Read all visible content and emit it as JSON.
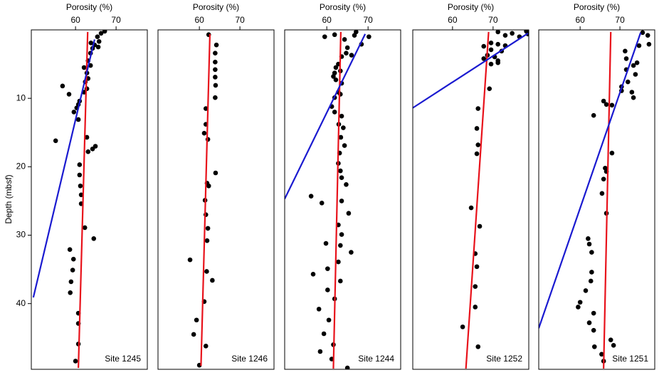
{
  "chart_data": [
    {
      "type": "scatter",
      "x_label": "Porosity (%)",
      "y_label": "Depth (mbsf)",
      "annotation": "Site 1245",
      "xlim": [
        49.1,
        77.7
      ],
      "xticks": [
        60,
        70
      ],
      "ylim": [
        0,
        49.6
      ],
      "yticks": [
        10,
        20,
        30,
        40
      ],
      "series": [
        {
          "type": "scatter",
          "color": "#000000",
          "x": [
            67.2,
            66.3,
            65.4,
            65.8,
            63.8,
            64.7,
            64.2,
            65.6,
            63.7,
            63.1,
            63.7,
            62.1,
            62.8,
            63.1,
            62.4,
            62.8,
            62.1,
            56.8,
            58.4,
            61.0,
            60.7,
            60.3,
            59.6,
            60.7,
            62.8,
            55.1,
            64.9,
            64.2,
            63.1,
            61.0,
            61.0,
            61.2,
            61.4,
            61.4,
            62.3,
            64.5,
            58.6,
            59.5,
            59.3,
            58.9,
            58.7,
            60.7,
            60.7,
            60.7,
            60.0
          ],
          "values": [
            0.2,
            0.5,
            1.0,
            1.7,
            1.9,
            2.2,
            2.7,
            2.5,
            3.4,
            4.5,
            5.2,
            5.5,
            6.3,
            7.1,
            7.6,
            8.6,
            9.1,
            8.2,
            9.4,
            10.4,
            10.9,
            11.4,
            12.0,
            13.1,
            15.7,
            16.2,
            17.0,
            17.4,
            17.8,
            19.7,
            21.2,
            22.8,
            24.1,
            25.4,
            28.9,
            30.5,
            32.1,
            33.5,
            35.1,
            36.8,
            38.4,
            41.4,
            42.9,
            45.9,
            48.4
          ]
        },
        {
          "type": "line",
          "color": "#e8121b",
          "x": [
            63.0,
            60.7
          ],
          "values": [
            0.3,
            49.4
          ]
        },
        {
          "type": "line",
          "color": "#1a1ad0",
          "x": [
            64.7,
            49.6
          ],
          "values": [
            1.4,
            39.1
          ]
        }
      ]
    },
    {
      "type": "scatter",
      "x_label": "Porosity (%)",
      "annotation": "Site 1246",
      "xlim": [
        49.8,
        78.4
      ],
      "xticks": [
        60,
        70
      ],
      "ylim": [
        0,
        49.6
      ],
      "series": [
        {
          "type": "scatter",
          "color": "#000000",
          "x": [
            62.3,
            64.2,
            63.9,
            63.9,
            63.9,
            63.9,
            64.0,
            63.9,
            61.6,
            61.6,
            61.2,
            62.1,
            64.0,
            61.9,
            62.3,
            61.4,
            61.6,
            62.1,
            61.9,
            57.7,
            61.8,
            63.2,
            61.2,
            59.3,
            58.6,
            61.6,
            60.0
          ],
          "values": [
            0.7,
            2.2,
            3.4,
            4.7,
            5.8,
            6.9,
            8.1,
            9.9,
            11.5,
            13.8,
            15.1,
            16.0,
            20.9,
            22.4,
            22.8,
            24.9,
            27.0,
            29.0,
            30.8,
            33.6,
            35.3,
            36.6,
            39.7,
            42.4,
            44.5,
            46.2,
            49.0
          ]
        },
        {
          "type": "line",
          "color": "#e8121b",
          "x": [
            62.6,
            60.4
          ],
          "values": [
            0.6,
            49.1
          ]
        }
      ]
    },
    {
      "type": "scatter",
      "x_label": "Porosity (%)",
      "annotation": "Site 1244",
      "xlim": [
        49.8,
        77.9
      ],
      "xticks": [
        60,
        70
      ],
      "ylim": [
        0,
        49.6
      ],
      "series": [
        {
          "type": "scatter",
          "color": "#000000",
          "x": [
            59.5,
            61.9,
            64.3,
            66.7,
            67.1,
            70.2,
            65.0,
            64.7,
            66.0,
            68.4,
            63.6,
            62.8,
            62.2,
            63.3,
            61.9,
            61.6,
            62.2,
            63.6,
            62.8,
            63.3,
            61.9,
            61.2,
            61.9,
            63.6,
            62.9,
            64.0,
            63.4,
            64.3,
            63.1,
            62.8,
            63.3,
            63.6,
            64.7,
            56.2,
            58.8,
            63.6,
            65.3,
            62.8,
            63.6,
            63.3,
            59.8,
            65.9,
            62.8,
            56.7,
            60.2,
            63.3,
            60.2,
            61.9,
            58.1,
            60.5,
            59.3,
            61.6,
            58.4,
            61.2,
            65.0
          ],
          "values": [
            1.0,
            0.7,
            1.4,
            0.8,
            0.3,
            1.0,
            2.6,
            3.4,
            3.7,
            2.1,
            3.9,
            5.0,
            5.5,
            6.0,
            6.3,
            6.8,
            7.3,
            7.8,
            9.1,
            9.4,
            9.9,
            11.2,
            12.0,
            12.6,
            13.8,
            14.3,
            15.7,
            16.9,
            18.0,
            19.5,
            20.6,
            21.6,
            22.6,
            24.3,
            25.3,
            25.0,
            26.8,
            28.5,
            29.9,
            31.5,
            31.2,
            32.5,
            33.9,
            35.7,
            34.9,
            36.7,
            38.0,
            39.3,
            40.8,
            42.4,
            44.4,
            46.0,
            47.0,
            48.1,
            49.4
          ]
        },
        {
          "type": "line",
          "color": "#e8121b",
          "x": [
            63.4,
            61.6
          ],
          "values": [
            0.3,
            49.5
          ]
        },
        {
          "type": "line",
          "color": "#1a1ad0",
          "x": [
            69.3,
            49.8
          ],
          "values": [
            0.6,
            24.7
          ]
        }
      ]
    },
    {
      "type": "scatter",
      "x_label": "Porosity (%)",
      "annotation": "Site 1252",
      "xlim": [
        50.2,
        78.8
      ],
      "xticks": [
        60,
        70
      ],
      "ylim": [
        0,
        49.6
      ],
      "series": [
        {
          "type": "scatter",
          "color": "#000000",
          "x": [
            71.2,
            74.7,
            78.2,
            78.6,
            73.0,
            76.5,
            69.5,
            71.2,
            73.0,
            67.7,
            69.5,
            72.1,
            68.6,
            70.4,
            71.2,
            69.5,
            71.2,
            67.7,
            69.1,
            66.3,
            66.0,
            66.3,
            66.0,
            64.6,
            66.7,
            65.6,
            66.0,
            65.6,
            65.6,
            62.5,
            66.3
          ],
          "values": [
            0.3,
            0.5,
            0.2,
            0.6,
            0.8,
            1.0,
            1.9,
            2.1,
            2.3,
            2.4,
            2.9,
            3.1,
            3.7,
            3.95,
            4.5,
            5.0,
            4.8,
            4.2,
            8.6,
            11.5,
            14.4,
            16.8,
            18.1,
            26.0,
            28.7,
            32.7,
            34.6,
            37.5,
            40.5,
            43.4,
            46.3
          ]
        },
        {
          "type": "line",
          "color": "#e8121b",
          "x": [
            68.9,
            63.3
          ],
          "values": [
            0.3,
            49.5
          ]
        },
        {
          "type": "line",
          "color": "#1a1ad0",
          "x": [
            78.6,
            50.2
          ],
          "values": [
            0.5,
            11.4
          ]
        }
      ]
    },
    {
      "type": "scatter",
      "x_label": "Porosity (%)",
      "annotation": "Site 1251",
      "xlim": [
        49.6,
        78.75
      ],
      "xticks": [
        60,
        70
      ],
      "ylim": [
        0,
        49.6
      ],
      "series": [
        {
          "type": "scatter",
          "color": "#000000",
          "x": [
            75.7,
            77.0,
            77.3,
            74.8,
            71.3,
            71.6,
            74.3,
            73.4,
            71.6,
            73.9,
            72.0,
            70.4,
            70.4,
            73.0,
            73.4,
            65.9,
            66.6,
            68.0,
            63.4,
            68.0,
            66.3,
            66.6,
            65.9,
            65.5,
            66.6,
            62.0,
            62.3,
            62.9,
            62.9,
            62.7,
            61.4,
            60.0,
            59.5,
            63.4,
            62.3,
            63.4,
            67.7,
            68.4,
            63.6,
            65.4,
            65.9
          ],
          "values": [
            0.4,
            0.8,
            2.1,
            2.3,
            3.1,
            4.2,
            4.8,
            5.2,
            5.8,
            6.5,
            7.6,
            8.3,
            8.9,
            9.1,
            9.9,
            10.4,
            10.9,
            11.0,
            12.5,
            18.0,
            20.2,
            20.7,
            21.8,
            23.9,
            26.8,
            30.5,
            31.3,
            32.5,
            35.4,
            36.7,
            38.1,
            39.8,
            40.5,
            41.4,
            42.8,
            43.9,
            45.3,
            46.1,
            46.3,
            47.4,
            48.4
          ]
        },
        {
          "type": "line",
          "color": "#e8121b",
          "x": [
            67.7,
            65.9
          ],
          "values": [
            0.3,
            49.5
          ]
        },
        {
          "type": "line",
          "color": "#1a1ad0",
          "x": [
            75.2,
            49.6
          ],
          "values": [
            0.4,
            43.6
          ]
        }
      ]
    }
  ]
}
